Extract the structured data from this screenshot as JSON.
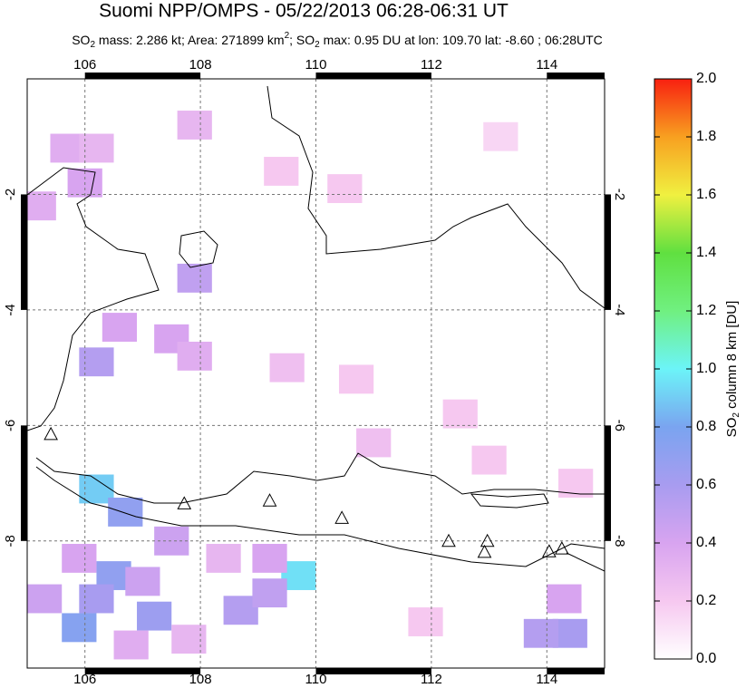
{
  "chart_data": {
    "type": "map",
    "title": "Suomi NPP/OMPS - 05/22/2013 06:28-06:31 UT",
    "subtitle": [
      "SO",
      "2",
      " mass: 2.286 kt; Area: 271899 km",
      "2",
      "; SO",
      "2",
      " max: 0.95 DU at lon: 109.70 lat: -8.60 ; 06:28UTC"
    ],
    "xlim": [
      105,
      115
    ],
    "xticks": [
      106,
      108,
      110,
      112,
      114
    ],
    "ylim": [
      -10.2,
      0
    ],
    "yticks": [
      -2,
      -4,
      -6,
      -8
    ],
    "grid": true,
    "colorbar": {
      "label": [
        "SO",
        "2",
        " column 8 km [DU]"
      ],
      "lim": [
        0,
        2
      ],
      "ticks": [
        {
          "value": 0,
          "label": "0.0"
        },
        0.2,
        0.4,
        0.6,
        0.8,
        {
          "value": 1,
          "label": "1.0"
        },
        1.2,
        1.4,
        1.6,
        1.8,
        {
          "value": 2,
          "label": "2.0"
        }
      ],
      "colorscale": [
        [
          0,
          "#ffffff"
        ],
        [
          0.2,
          "#f6c8f0"
        ],
        [
          0.4,
          "#d8a4f0"
        ],
        [
          0.6,
          "#a89cf0"
        ],
        [
          0.8,
          "#7aa4f0"
        ],
        [
          1,
          "#6cf4f8"
        ],
        [
          1.2,
          "#70f080"
        ],
        [
          1.4,
          "#60e040"
        ],
        [
          1.6,
          "#f0f040"
        ],
        [
          1.8,
          "#f8a020"
        ],
        [
          2,
          "#f82010"
        ]
      ]
    },
    "cells": [
      {
        "lon": 106.2,
        "lat": -7.1,
        "value": 0.9
      },
      {
        "lon": 109.7,
        "lat": -8.6,
        "value": 0.95
      },
      {
        "lon": 106.7,
        "lat": -7.5,
        "value": 0.7
      },
      {
        "lon": 106.5,
        "lat": -8.6,
        "value": 0.7
      },
      {
        "lon": 106.2,
        "lat": -9.0,
        "value": 0.6
      },
      {
        "lon": 107.2,
        "lat": -9.3,
        "value": 0.65
      },
      {
        "lon": 105.9,
        "lat": -9.5,
        "value": 0.75
      },
      {
        "lon": 108.7,
        "lat": -9.2,
        "value": 0.55
      },
      {
        "lon": 114.4,
        "lat": -9.6,
        "value": 0.6
      },
      {
        "lon": 113.9,
        "lat": -9.6,
        "value": 0.55
      },
      {
        "lon": 106.2,
        "lat": -4.9,
        "value": 0.55
      },
      {
        "lon": 107.9,
        "lat": -3.45,
        "value": 0.5
      },
      {
        "lon": 106.6,
        "lat": -4.3,
        "value": 0.4
      },
      {
        "lon": 107.5,
        "lat": -4.5,
        "value": 0.4
      },
      {
        "lon": 107.9,
        "lat": -4.8,
        "value": 0.35
      },
      {
        "lon": 105.9,
        "lat": -8.3,
        "value": 0.4
      },
      {
        "lon": 107.0,
        "lat": -8.7,
        "value": 0.45
      },
      {
        "lon": 107.5,
        "lat": -8.0,
        "value": 0.45
      },
      {
        "lon": 108.4,
        "lat": -8.3,
        "value": 0.3
      },
      {
        "lon": 109.2,
        "lat": -8.3,
        "value": 0.4
      },
      {
        "lon": 109.2,
        "lat": -8.9,
        "value": 0.5
      },
      {
        "lon": 105.3,
        "lat": -9.0,
        "value": 0.45
      },
      {
        "lon": 106.8,
        "lat": -9.8,
        "value": 0.35
      },
      {
        "lon": 107.8,
        "lat": -9.7,
        "value": 0.3
      },
      {
        "lon": 105.7,
        "lat": -1.2,
        "value": 0.35
      },
      {
        "lon": 106.2,
        "lat": -1.2,
        "value": 0.3
      },
      {
        "lon": 107.9,
        "lat": -0.8,
        "value": 0.3
      },
      {
        "lon": 109.4,
        "lat": -1.6,
        "value": 0.2
      },
      {
        "lon": 110.5,
        "lat": -1.9,
        "value": 0.2
      },
      {
        "lon": 113.2,
        "lat": -1.0,
        "value": 0.15
      },
      {
        "lon": 109.5,
        "lat": -5.0,
        "value": 0.25
      },
      {
        "lon": 110.7,
        "lat": -5.2,
        "value": 0.2
      },
      {
        "lon": 112.5,
        "lat": -5.8,
        "value": 0.2
      },
      {
        "lon": 111.0,
        "lat": -6.3,
        "value": 0.25
      },
      {
        "lon": 113.0,
        "lat": -6.6,
        "value": 0.2
      },
      {
        "lon": 114.5,
        "lat": -7.0,
        "value": 0.2
      },
      {
        "lon": 105.2,
        "lat": -2.2,
        "value": 0.35
      },
      {
        "lon": 111.9,
        "lat": -9.4,
        "value": 0.2
      },
      {
        "lon": 114.3,
        "lat": -9.0,
        "value": 0.4
      },
      {
        "lon": 106.0,
        "lat": -1.8,
        "value": 0.4
      }
    ],
    "volcanoes": [
      {
        "lon": 105.41,
        "lat": -6.15
      },
      {
        "lon": 107.72,
        "lat": -7.35
      },
      {
        "lon": 109.2,
        "lat": -7.3
      },
      {
        "lon": 110.45,
        "lat": -7.6
      },
      {
        "lon": 112.3,
        "lat": -8.0
      },
      {
        "lon": 112.97,
        "lat": -8.0
      },
      {
        "lon": 112.92,
        "lat": -8.19
      },
      {
        "lon": 114.04,
        "lat": -8.18
      },
      {
        "lon": 114.26,
        "lat": -8.13
      }
    ]
  }
}
